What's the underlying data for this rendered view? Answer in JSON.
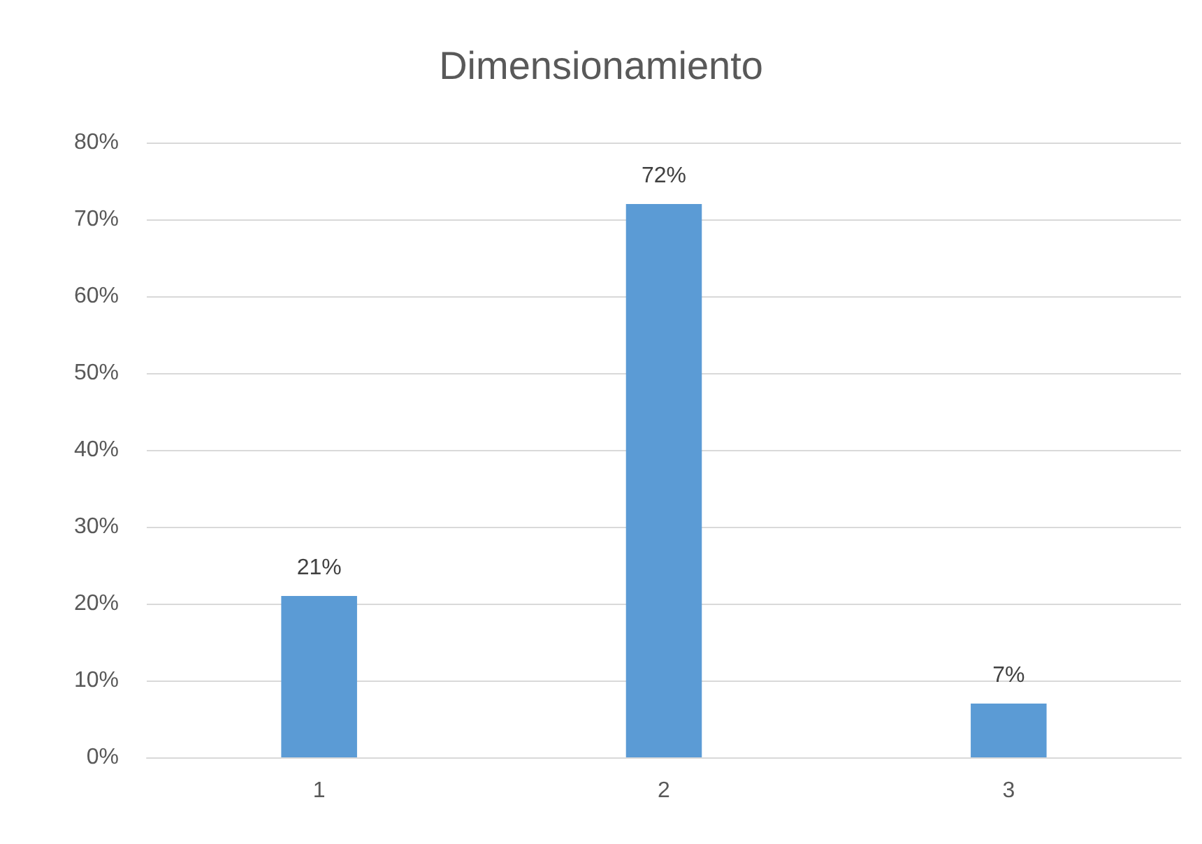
{
  "chart_data": {
    "type": "bar",
    "title": "Dimensionamiento",
    "categories": [
      "1",
      "2",
      "3"
    ],
    "values": [
      21,
      72,
      7
    ],
    "value_labels": [
      "21%",
      "72%",
      "7%"
    ],
    "color": "#5b9bd5",
    "ylim": [
      0,
      80
    ],
    "yticks": [
      {
        "value": 0,
        "label": "0%"
      },
      {
        "value": 10,
        "label": "10%"
      },
      {
        "value": 20,
        "label": "20%"
      },
      {
        "value": 30,
        "label": "30%"
      },
      {
        "value": 40,
        "label": "40%"
      },
      {
        "value": 50,
        "label": "50%"
      },
      {
        "value": 60,
        "label": "60%"
      },
      {
        "value": 70,
        "label": "70%"
      },
      {
        "value": 80,
        "label": "80%"
      }
    ],
    "grid": "y"
  }
}
